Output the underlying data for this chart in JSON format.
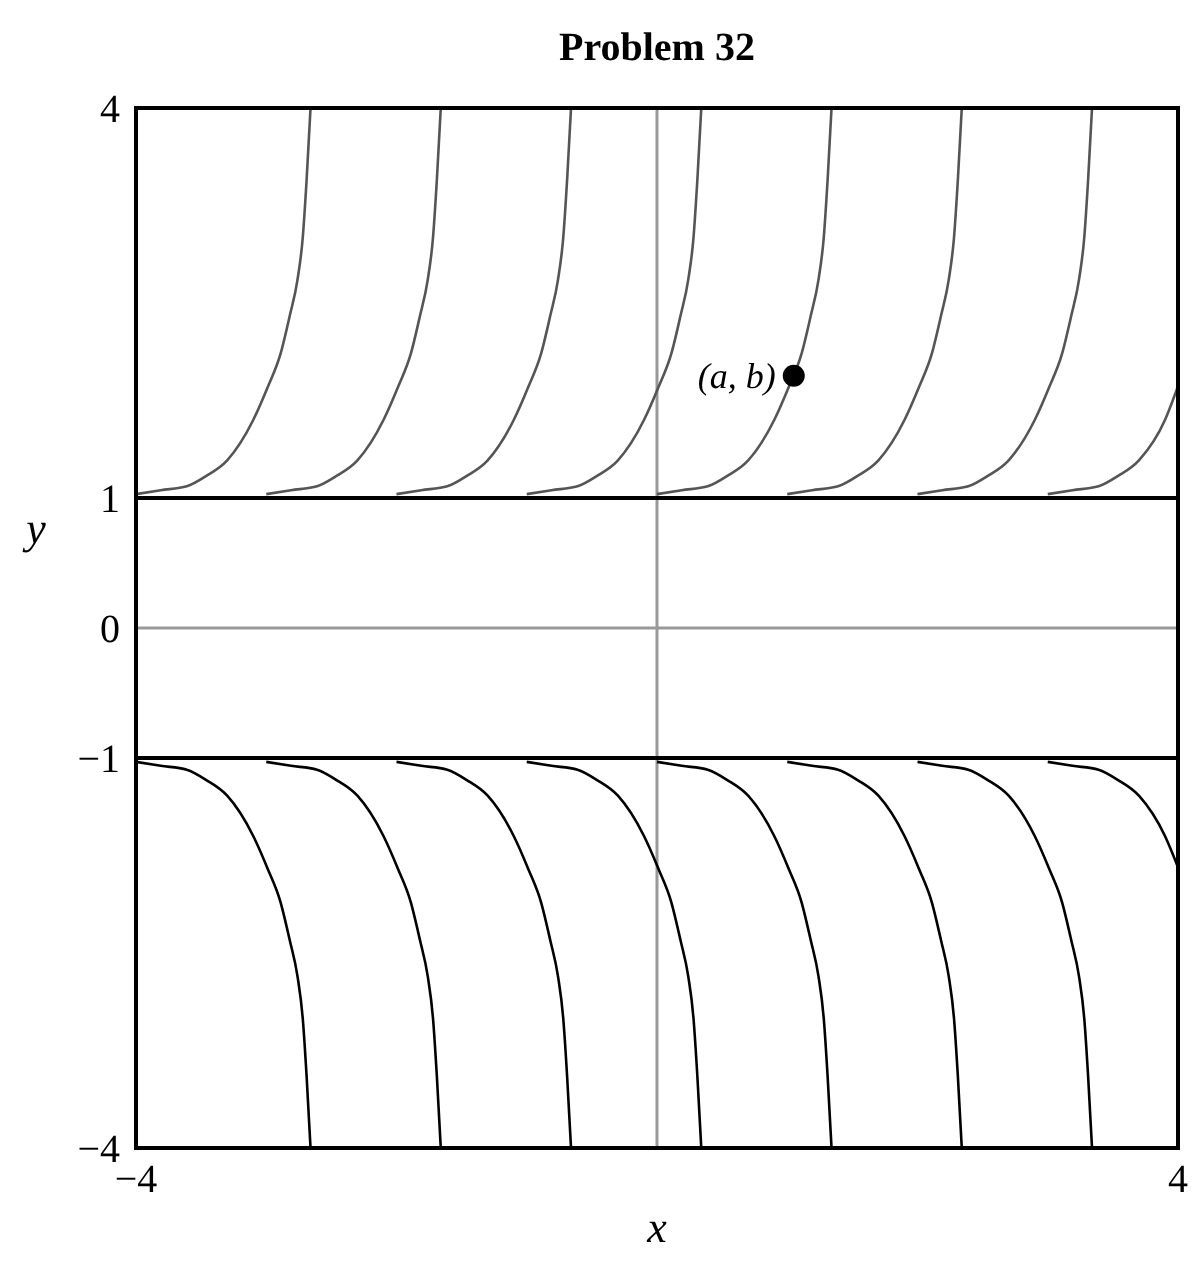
{
  "chart_data": {
    "type": "line",
    "title": "Problem 32",
    "xlabel": "x",
    "ylabel": "y",
    "xlim": [
      -4,
      4
    ],
    "ylim": [
      -4,
      4
    ],
    "xticks": [
      {
        "value": -4,
        "label": "−4"
      },
      4
    ],
    "yticks": [
      {
        "value": -4,
        "label": "−4"
      },
      {
        "value": -1,
        "label": "−1"
      },
      0,
      1,
      4
    ],
    "ref_lines": [
      {
        "axis": "x",
        "value": 0,
        "color": "#999999"
      },
      {
        "axis": "y",
        "value": 0,
        "color": "#999999"
      },
      {
        "axis": "y",
        "value": 1,
        "color": "#000000"
      },
      {
        "axis": "y",
        "value": -1,
        "color": "#000000"
      }
    ],
    "series": [
      {
        "color": "#555555",
        "x": [
          -4.0,
          -3.81,
          -3.61,
          -3.46,
          -3.3,
          -3.1,
          -2.99,
          -2.89,
          -2.82,
          -2.76,
          -2.72,
          -2.69,
          -2.66
        ],
        "values": [
          1.03,
          1.06,
          1.09,
          1.17,
          1.29,
          1.6,
          1.85,
          2.11,
          2.4,
          2.68,
          3.0,
          3.45,
          4
        ]
      },
      {
        "color": "#555555",
        "x": [
          -3.0,
          -2.81,
          -2.61,
          -2.46,
          -2.3,
          -2.1,
          -1.99,
          -1.89,
          -1.82,
          -1.76,
          -1.72,
          -1.69,
          -1.66
        ],
        "values": [
          1.03,
          1.06,
          1.09,
          1.17,
          1.29,
          1.6,
          1.85,
          2.11,
          2.4,
          2.68,
          3.0,
          3.45,
          4
        ]
      },
      {
        "color": "#555555",
        "x": [
          -2.0,
          -1.81,
          -1.61,
          -1.46,
          -1.3,
          -1.1,
          -0.99,
          -0.89,
          -0.82,
          -0.76,
          -0.72,
          -0.69,
          -0.66
        ],
        "values": [
          1.03,
          1.06,
          1.09,
          1.17,
          1.29,
          1.6,
          1.85,
          2.11,
          2.4,
          2.68,
          3.0,
          3.45,
          4
        ]
      },
      {
        "color": "#555555",
        "x": [
          -1.0,
          -0.81,
          -0.61,
          -0.46,
          -0.3,
          -0.1,
          0.01,
          0.11,
          0.18,
          0.24,
          0.28,
          0.31,
          0.34
        ],
        "values": [
          1.03,
          1.06,
          1.09,
          1.17,
          1.29,
          1.6,
          1.85,
          2.11,
          2.4,
          2.68,
          3.0,
          3.45,
          4
        ]
      },
      {
        "color": "#555555",
        "x": [
          0.0,
          0.19,
          0.39,
          0.54,
          0.7,
          0.9,
          1.01,
          1.11,
          1.18,
          1.24,
          1.28,
          1.31,
          1.34
        ],
        "values": [
          1.03,
          1.06,
          1.09,
          1.17,
          1.29,
          1.6,
          1.85,
          2.11,
          2.4,
          2.68,
          3.0,
          3.45,
          4
        ]
      },
      {
        "color": "#555555",
        "x": [
          1.0,
          1.19,
          1.39,
          1.54,
          1.7,
          1.9,
          2.01,
          2.11,
          2.18,
          2.24,
          2.28,
          2.31,
          2.34
        ],
        "values": [
          1.03,
          1.06,
          1.09,
          1.17,
          1.29,
          1.6,
          1.85,
          2.11,
          2.4,
          2.68,
          3.0,
          3.45,
          4
        ]
      },
      {
        "color": "#555555",
        "x": [
          2.0,
          2.19,
          2.39,
          2.54,
          2.7,
          2.9,
          3.01,
          3.11,
          3.18,
          3.24,
          3.28,
          3.31,
          3.34
        ],
        "values": [
          1.03,
          1.06,
          1.09,
          1.17,
          1.29,
          1.6,
          1.85,
          2.11,
          2.4,
          2.68,
          3.0,
          3.45,
          4
        ]
      },
      {
        "color": "#555555",
        "x": [
          3.0,
          3.19,
          3.39,
          3.54,
          3.7,
          3.9,
          4.0
        ],
        "values": [
          1.03,
          1.06,
          1.09,
          1.17,
          1.29,
          1.6,
          1.86
        ]
      },
      {
        "color": "#000000",
        "x": [
          -4.0,
          -3.81,
          -3.61,
          -3.46,
          -3.3,
          -3.1,
          -2.99,
          -2.89,
          -2.82,
          -2.76,
          -2.72,
          -2.69,
          -2.66
        ],
        "values": [
          -1.03,
          -1.06,
          -1.09,
          -1.17,
          -1.29,
          -1.6,
          -1.85,
          -2.11,
          -2.4,
          -2.68,
          -3.0,
          -3.45,
          -4
        ]
      },
      {
        "color": "#000000",
        "x": [
          -3.0,
          -2.81,
          -2.61,
          -2.46,
          -2.3,
          -2.1,
          -1.99,
          -1.89,
          -1.82,
          -1.76,
          -1.72,
          -1.69,
          -1.66
        ],
        "values": [
          -1.03,
          -1.06,
          -1.09,
          -1.17,
          -1.29,
          -1.6,
          -1.85,
          -2.11,
          -2.4,
          -2.68,
          -3.0,
          -3.45,
          -4
        ]
      },
      {
        "color": "#000000",
        "x": [
          -2.0,
          -1.81,
          -1.61,
          -1.46,
          -1.3,
          -1.1,
          -0.99,
          -0.89,
          -0.82,
          -0.76,
          -0.72,
          -0.69,
          -0.66
        ],
        "values": [
          -1.03,
          -1.06,
          -1.09,
          -1.17,
          -1.29,
          -1.6,
          -1.85,
          -2.11,
          -2.4,
          -2.68,
          -3.0,
          -3.45,
          -4
        ]
      },
      {
        "color": "#000000",
        "x": [
          -1.0,
          -0.81,
          -0.61,
          -0.46,
          -0.3,
          -0.1,
          0.01,
          0.11,
          0.18,
          0.24,
          0.28,
          0.31,
          0.34
        ],
        "values": [
          -1.03,
          -1.06,
          -1.09,
          -1.17,
          -1.29,
          -1.6,
          -1.85,
          -2.11,
          -2.4,
          -2.68,
          -3.0,
          -3.45,
          -4
        ]
      },
      {
        "color": "#000000",
        "x": [
          0.0,
          0.19,
          0.39,
          0.54,
          0.7,
          0.9,
          1.01,
          1.11,
          1.18,
          1.24,
          1.28,
          1.31,
          1.34
        ],
        "values": [
          -1.03,
          -1.06,
          -1.09,
          -1.17,
          -1.29,
          -1.6,
          -1.85,
          -2.11,
          -2.4,
          -2.68,
          -3.0,
          -3.45,
          -4
        ]
      },
      {
        "color": "#000000",
        "x": [
          1.0,
          1.19,
          1.39,
          1.54,
          1.7,
          1.9,
          2.01,
          2.11,
          2.18,
          2.24,
          2.28,
          2.31,
          2.34
        ],
        "values": [
          -1.03,
          -1.06,
          -1.09,
          -1.17,
          -1.29,
          -1.6,
          -1.85,
          -2.11,
          -2.4,
          -2.68,
          -3.0,
          -3.45,
          -4
        ]
      },
      {
        "color": "#000000",
        "x": [
          2.0,
          2.19,
          2.39,
          2.54,
          2.7,
          2.9,
          3.01,
          3.11,
          3.18,
          3.24,
          3.28,
          3.31,
          3.34
        ],
        "values": [
          -1.03,
          -1.06,
          -1.09,
          -1.17,
          -1.29,
          -1.6,
          -1.85,
          -2.11,
          -2.4,
          -2.68,
          -3.0,
          -3.45,
          -4
        ]
      },
      {
        "color": "#000000",
        "x": [
          3.0,
          3.19,
          3.39,
          3.54,
          3.7,
          3.9,
          4.0
        ],
        "values": [
          -1.03,
          -1.06,
          -1.09,
          -1.17,
          -1.29,
          -1.6,
          -1.84
        ]
      },
      {
        "type": "scatter",
        "marker": "circle",
        "color": "#000000",
        "x": [
          1.05
        ],
        "values": [
          1.94
        ]
      }
    ],
    "annotations": [
      {
        "text": "(a, b)",
        "x": 1.05,
        "y": 1.94
      }
    ]
  }
}
